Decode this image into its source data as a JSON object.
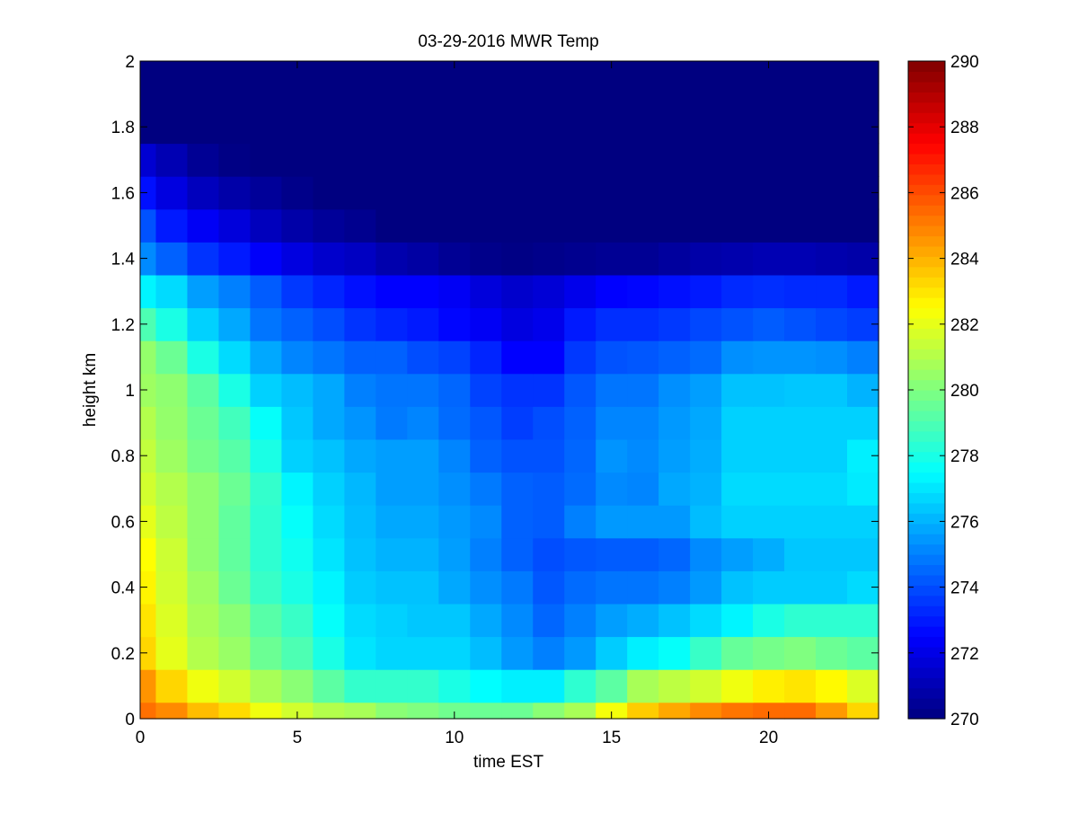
{
  "chart_data": {
    "type": "heatmap",
    "title": "03-29-2016 MWR Temp",
    "xlabel": "time EST",
    "ylabel": "height km",
    "xlim": [
      0,
      23.5
    ],
    "ylim": [
      0,
      2
    ],
    "x_ticks": [
      "0",
      "5",
      "10",
      "15",
      "20"
    ],
    "x_tick_values": [
      0,
      5,
      10,
      15,
      20
    ],
    "y_ticks": [
      "0",
      "0.2",
      "0.4",
      "0.6",
      "0.8",
      "1",
      "1.2",
      "1.4",
      "1.6",
      "1.8",
      "2"
    ],
    "y_tick_values": [
      0,
      0.2,
      0.4,
      0.6,
      0.8,
      1,
      1.2,
      1.4,
      1.6,
      1.8,
      2
    ],
    "colorbar": {
      "min": 270,
      "max": 290,
      "colormap": "jet",
      "ticks": [
        "270",
        "272",
        "274",
        "276",
        "278",
        "280",
        "282",
        "284",
        "286",
        "288",
        "290"
      ],
      "tick_values": [
        270,
        272,
        274,
        276,
        278,
        280,
        282,
        284,
        286,
        288,
        290
      ]
    },
    "x_centers": [
      0,
      1,
      2,
      3,
      4,
      5,
      6,
      7,
      8,
      9,
      10,
      11,
      12,
      13,
      14,
      15,
      16,
      17,
      18,
      19,
      20,
      21,
      22,
      23
    ],
    "y_edges": [
      0,
      0.05,
      0.15,
      0.25,
      0.35,
      0.45,
      0.55,
      0.65,
      0.75,
      0.85,
      0.95,
      1.05,
      1.15,
      1.25,
      1.35,
      1.45,
      1.55,
      1.65,
      1.75,
      1.85,
      2.0
    ],
    "values": [
      [
        285.3,
        284.8,
        283.8,
        283.2,
        282.2,
        281.6,
        281.0,
        280.8,
        280.2,
        280.0,
        279.7,
        279.6,
        279.6,
        280.2,
        280.8,
        282.3,
        283.5,
        284.2,
        284.8,
        285.2,
        285.4,
        285.4,
        284.5,
        283.3
      ],
      [
        284.6,
        283.3,
        282.2,
        281.6,
        280.8,
        280.2,
        279.3,
        278.5,
        278.5,
        278.5,
        278.0,
        277.5,
        277.2,
        277.2,
        278.4,
        279.3,
        280.8,
        281.2,
        281.6,
        282.2,
        282.8,
        283.0,
        282.6,
        281.8
      ],
      [
        283.3,
        282.0,
        281.0,
        280.5,
        279.6,
        279.0,
        278.0,
        277.0,
        276.7,
        276.7,
        276.7,
        276.2,
        275.5,
        275.0,
        275.5,
        276.5,
        277.2,
        277.6,
        278.6,
        279.5,
        279.8,
        280.0,
        279.6,
        279.3
      ],
      [
        283.0,
        281.8,
        280.8,
        280.2,
        279.2,
        278.6,
        277.6,
        276.8,
        276.6,
        276.4,
        276.4,
        275.8,
        275.2,
        274.5,
        275.0,
        275.6,
        275.9,
        276.3,
        276.8,
        277.3,
        278.0,
        278.4,
        278.4,
        278.4
      ],
      [
        282.7,
        281.6,
        280.6,
        279.6,
        278.6,
        278.0,
        277.3,
        276.5,
        276.3,
        276.3,
        275.8,
        275.3,
        274.9,
        274.2,
        274.6,
        274.8,
        274.8,
        275.0,
        275.5,
        276.3,
        276.5,
        276.5,
        276.5,
        276.8
      ],
      [
        282.5,
        281.5,
        280.3,
        279.4,
        278.4,
        277.8,
        277.0,
        276.3,
        276.0,
        276.0,
        275.6,
        275.0,
        274.4,
        274.0,
        274.2,
        274.3,
        274.3,
        274.5,
        275.2,
        275.6,
        275.9,
        276.4,
        276.4,
        276.4
      ],
      [
        282.0,
        281.2,
        280.3,
        279.4,
        278.4,
        277.6,
        276.8,
        276.2,
        275.8,
        275.8,
        275.5,
        275.2,
        274.4,
        274.3,
        275.0,
        275.5,
        275.5,
        275.5,
        276.2,
        276.6,
        276.6,
        276.6,
        276.6,
        276.6
      ],
      [
        281.6,
        281.0,
        280.3,
        279.6,
        278.5,
        277.3,
        276.6,
        276.1,
        275.6,
        275.6,
        275.3,
        274.9,
        274.4,
        274.3,
        274.6,
        275.2,
        275.1,
        275.8,
        276.0,
        276.8,
        276.8,
        276.8,
        276.8,
        277.1
      ],
      [
        281.3,
        280.6,
        279.8,
        279.2,
        278.0,
        276.6,
        276.3,
        275.8,
        275.6,
        275.6,
        275.1,
        274.4,
        274.1,
        274.1,
        274.5,
        275.4,
        275.2,
        275.6,
        275.9,
        276.6,
        276.6,
        276.6,
        276.6,
        277.2
      ],
      [
        281.0,
        280.4,
        279.6,
        278.8,
        277.6,
        276.4,
        275.8,
        275.4,
        274.9,
        275.1,
        274.6,
        274.2,
        273.7,
        274.0,
        274.4,
        275.1,
        275.1,
        275.5,
        275.8,
        276.6,
        276.6,
        276.6,
        276.6,
        276.6
      ],
      [
        280.6,
        280.3,
        279.3,
        278.0,
        276.6,
        276.2,
        275.8,
        275.0,
        274.8,
        274.8,
        274.5,
        273.8,
        273.5,
        273.5,
        274.2,
        274.8,
        274.8,
        275.3,
        275.6,
        276.3,
        276.3,
        276.4,
        276.4,
        276.0
      ],
      [
        280.4,
        279.6,
        278.0,
        276.8,
        275.8,
        275.1,
        274.8,
        274.4,
        274.4,
        274.0,
        273.8,
        273.2,
        272.5,
        272.5,
        273.6,
        274.1,
        274.2,
        274.4,
        274.6,
        275.3,
        275.4,
        275.4,
        275.3,
        275.0
      ],
      [
        279.0,
        278.0,
        276.6,
        275.8,
        274.8,
        274.4,
        274.0,
        273.5,
        273.2,
        273.0,
        272.6,
        272.3,
        271.9,
        272.1,
        273.0,
        273.4,
        273.4,
        273.6,
        273.9,
        274.1,
        274.3,
        274.1,
        273.9,
        273.7
      ],
      [
        277.3,
        276.8,
        275.6,
        275.0,
        274.3,
        273.6,
        273.2,
        272.8,
        272.5,
        272.5,
        272.3,
        271.8,
        271.5,
        271.7,
        272.1,
        272.5,
        272.6,
        272.8,
        273.0,
        273.3,
        273.4,
        273.3,
        273.3,
        273.0
      ],
      [
        275.2,
        274.4,
        273.5,
        273.0,
        272.4,
        271.9,
        271.5,
        271.3,
        270.9,
        270.7,
        270.4,
        270.2,
        270.1,
        270.2,
        270.3,
        270.4,
        270.4,
        270.6,
        270.8,
        270.9,
        271.0,
        271.0,
        270.9,
        270.8
      ],
      [
        274.1,
        273.0,
        272.3,
        271.8,
        271.2,
        270.8,
        270.5,
        270.3,
        270.0,
        270.0,
        270.0,
        270.0,
        270.0,
        270.0,
        270.0,
        270.0,
        270.0,
        270.0,
        270.0,
        270.0,
        270.0,
        270.0,
        270.0,
        270.0
      ],
      [
        272.8,
        271.9,
        271.2,
        270.8,
        270.5,
        270.2,
        270.0,
        270.0,
        270.0,
        270.0,
        270.0,
        270.0,
        270.0,
        270.0,
        270.0,
        270.0,
        270.0,
        270.0,
        270.0,
        270.0,
        270.0,
        270.0,
        270.0,
        270.0
      ],
      [
        271.6,
        271.0,
        270.4,
        270.1,
        270.0,
        270.0,
        270.0,
        270.0,
        270.0,
        270.0,
        270.0,
        270.0,
        270.0,
        270.0,
        270.0,
        270.0,
        270.0,
        270.0,
        270.0,
        270.0,
        270.0,
        270.0,
        270.0,
        270.0
      ],
      [
        270.0,
        270.0,
        270.0,
        270.0,
        270.0,
        270.0,
        270.0,
        270.0,
        270.0,
        270.0,
        270.0,
        270.0,
        270.0,
        270.0,
        270.0,
        270.0,
        270.0,
        270.0,
        270.0,
        270.0,
        270.0,
        270.0,
        270.0,
        270.0
      ],
      [
        270.0,
        270.0,
        270.0,
        270.0,
        270.0,
        270.0,
        270.0,
        270.0,
        270.0,
        270.0,
        270.0,
        270.0,
        270.0,
        270.0,
        270.0,
        270.0,
        270.0,
        270.0,
        270.0,
        270.0,
        270.0,
        270.0,
        270.0,
        270.0
      ]
    ]
  }
}
